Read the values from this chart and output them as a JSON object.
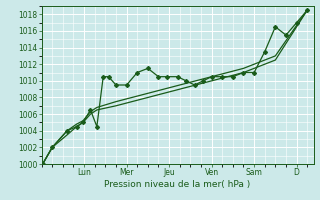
{
  "xlabel": "Pression niveau de la mer( hPa )",
  "background_color": "#cce9e9",
  "grid_color": "#ffffff",
  "line_color": "#1a5c1a",
  "ylim": [
    1000,
    1019
  ],
  "yticks": [
    1000,
    1002,
    1004,
    1006,
    1008,
    1010,
    1012,
    1014,
    1016,
    1018
  ],
  "day_labels": [
    "Lun",
    "Mer",
    "Jeu",
    "Ven",
    "Sam",
    "D"
  ],
  "day_positions": [
    2.0,
    4.0,
    6.0,
    8.0,
    10.0,
    12.0
  ],
  "xlim": [
    0,
    12.8
  ],
  "series1_x": [
    0.05,
    0.5,
    1.2,
    1.65,
    1.95,
    2.3,
    2.6,
    2.9,
    3.15,
    3.5,
    4.0,
    4.5,
    5.0,
    5.5,
    5.9,
    6.4,
    6.8,
    7.2,
    7.6,
    8.0,
    8.5,
    9.0,
    9.5,
    10.0,
    10.5,
    11.0,
    11.5,
    12.0,
    12.5
  ],
  "series1_y": [
    1000,
    1002,
    1004,
    1004.5,
    1005.0,
    1006.5,
    1004.5,
    1010.5,
    1010.5,
    1009.5,
    1009.5,
    1011.0,
    1011.5,
    1010.5,
    1010.5,
    1010.5,
    1010.0,
    1009.5,
    1010.0,
    1010.5,
    1010.5,
    1010.5,
    1011.0,
    1011.0,
    1013.5,
    1016.5,
    1015.5,
    1017.0,
    1018.5
  ],
  "series2_x": [
    0.05,
    0.5,
    1.2,
    1.65,
    1.95,
    2.3,
    2.6,
    3.5,
    5.0,
    6.5,
    8.0,
    9.5,
    11.0,
    12.5
  ],
  "series2_y": [
    1000,
    1002,
    1004,
    1004.8,
    1005.2,
    1006.3,
    1006.8,
    1007.5,
    1008.5,
    1009.5,
    1010.5,
    1011.5,
    1013.0,
    1018.5
  ],
  "series3_x": [
    0.05,
    0.5,
    1.2,
    1.65,
    1.95,
    2.3,
    2.6,
    3.5,
    5.0,
    6.5,
    8.0,
    9.5,
    11.0,
    12.5
  ],
  "series3_y": [
    1000,
    1002,
    1003.5,
    1004.5,
    1005.0,
    1006.0,
    1006.5,
    1007.0,
    1008.0,
    1009.0,
    1010.0,
    1011.0,
    1012.5,
    1018.5
  ]
}
